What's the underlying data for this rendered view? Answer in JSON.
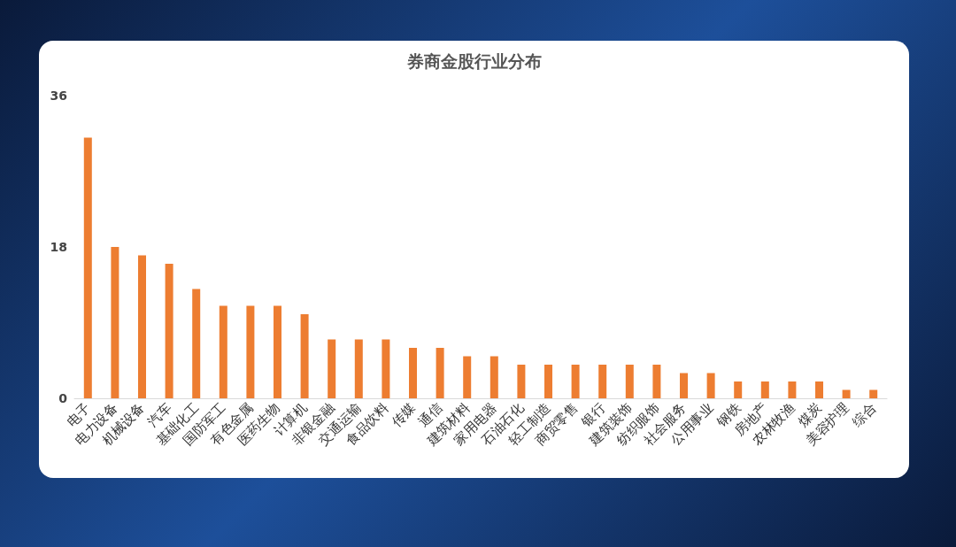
{
  "chart_data": {
    "type": "bar",
    "title": "券商金股行业分布",
    "categories": [
      "电子",
      "电力设备",
      "机械设备",
      "汽车",
      "基础化工",
      "国防军工",
      "有色金属",
      "医药生物",
      "计算机",
      "非银金融",
      "交通运输",
      "食品饮料",
      "传媒",
      "通信",
      "建筑材料",
      "家用电器",
      "石油石化",
      "轻工制造",
      "商贸零售",
      "银行",
      "建筑装饰",
      "纺织服饰",
      "社会服务",
      "公用事业",
      "钢铁",
      "房地产",
      "农林牧渔",
      "煤炭",
      "美容护理",
      "综合"
    ],
    "values": [
      31,
      18,
      17,
      16,
      13,
      11,
      11,
      11,
      10,
      7,
      7,
      7,
      6,
      6,
      5,
      5,
      4,
      4,
      4,
      4,
      4,
      4,
      3,
      3,
      2,
      2,
      2,
      2,
      1,
      1
    ],
    "color": "#ed7d31",
    "ylim": [
      0,
      36
    ],
    "yticks": [
      0,
      18,
      36
    ]
  }
}
